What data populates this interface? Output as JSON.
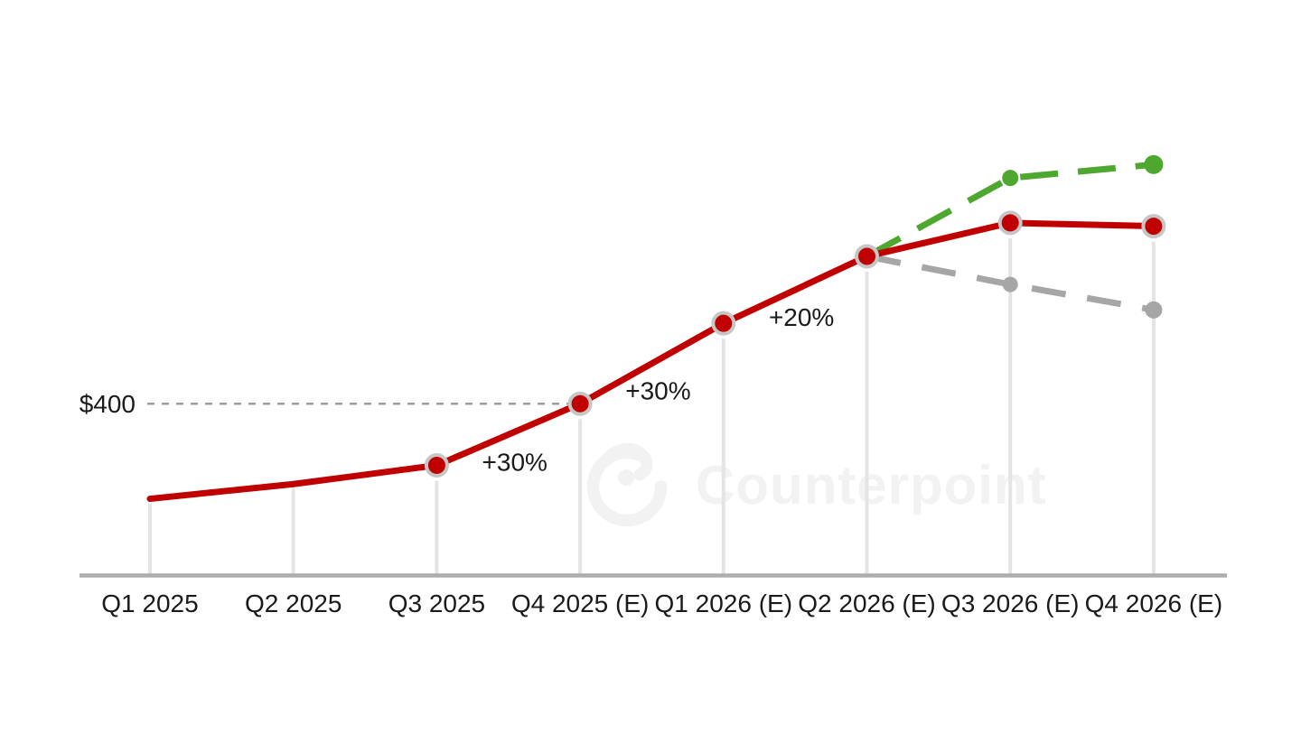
{
  "page": {
    "background": "#FFFFFF"
  },
  "chart_data": {
    "type": "line",
    "title": "",
    "watermark": {
      "text": "Counterpoint",
      "logo": "counterpoint-logo"
    },
    "categories": [
      "Q1 2025",
      "Q2 2025",
      "Q3 2025",
      "Q4 2025 (E)",
      "Q1 2026 (E)",
      "Q2 2026 (E)",
      "Q3 2026 (E)",
      "Q4 2026 (E)"
    ],
    "unit": "USD",
    "series": [
      {
        "name": "price-actual-and-forecast",
        "style": "solid",
        "color": "#C00000",
        "values": [
          258,
          280,
          308,
          400,
          520,
          620,
          670,
          665
        ],
        "markers": [
          false,
          false,
          true,
          true,
          true,
          true,
          true,
          true
        ]
      },
      {
        "name": "upside-scenario",
        "style": "dashed",
        "color": "#4EA72E",
        "start_index": 5,
        "values": [
          620,
          737,
          757
        ]
      },
      {
        "name": "downside-scenario",
        "style": "dashed",
        "color": "#A6A6A6",
        "start_index": 5,
        "values": [
          620,
          578,
          540
        ]
      }
    ],
    "annotations": [
      {
        "text": "+30%",
        "from_index": 2,
        "to_index": 3
      },
      {
        "text": "+30%",
        "from_index": 3,
        "to_index": 4
      },
      {
        "text": "+20%",
        "from_index": 4,
        "to_index": 5
      }
    ],
    "reference_line": {
      "label": "$400",
      "value": 400,
      "at_category": "Q4 2025 (E)"
    },
    "colors": {
      "axis": "#ADADAD",
      "stems": "#E4E4E4",
      "marker_ring": "#C6C6C6",
      "reference_dash": "#9E9E9E",
      "label_text": "#1A1A1A",
      "watermark": "#F2F2F2"
    },
    "ylim_hint": [
      0,
      800
    ],
    "grid": "off",
    "legend": "none"
  }
}
